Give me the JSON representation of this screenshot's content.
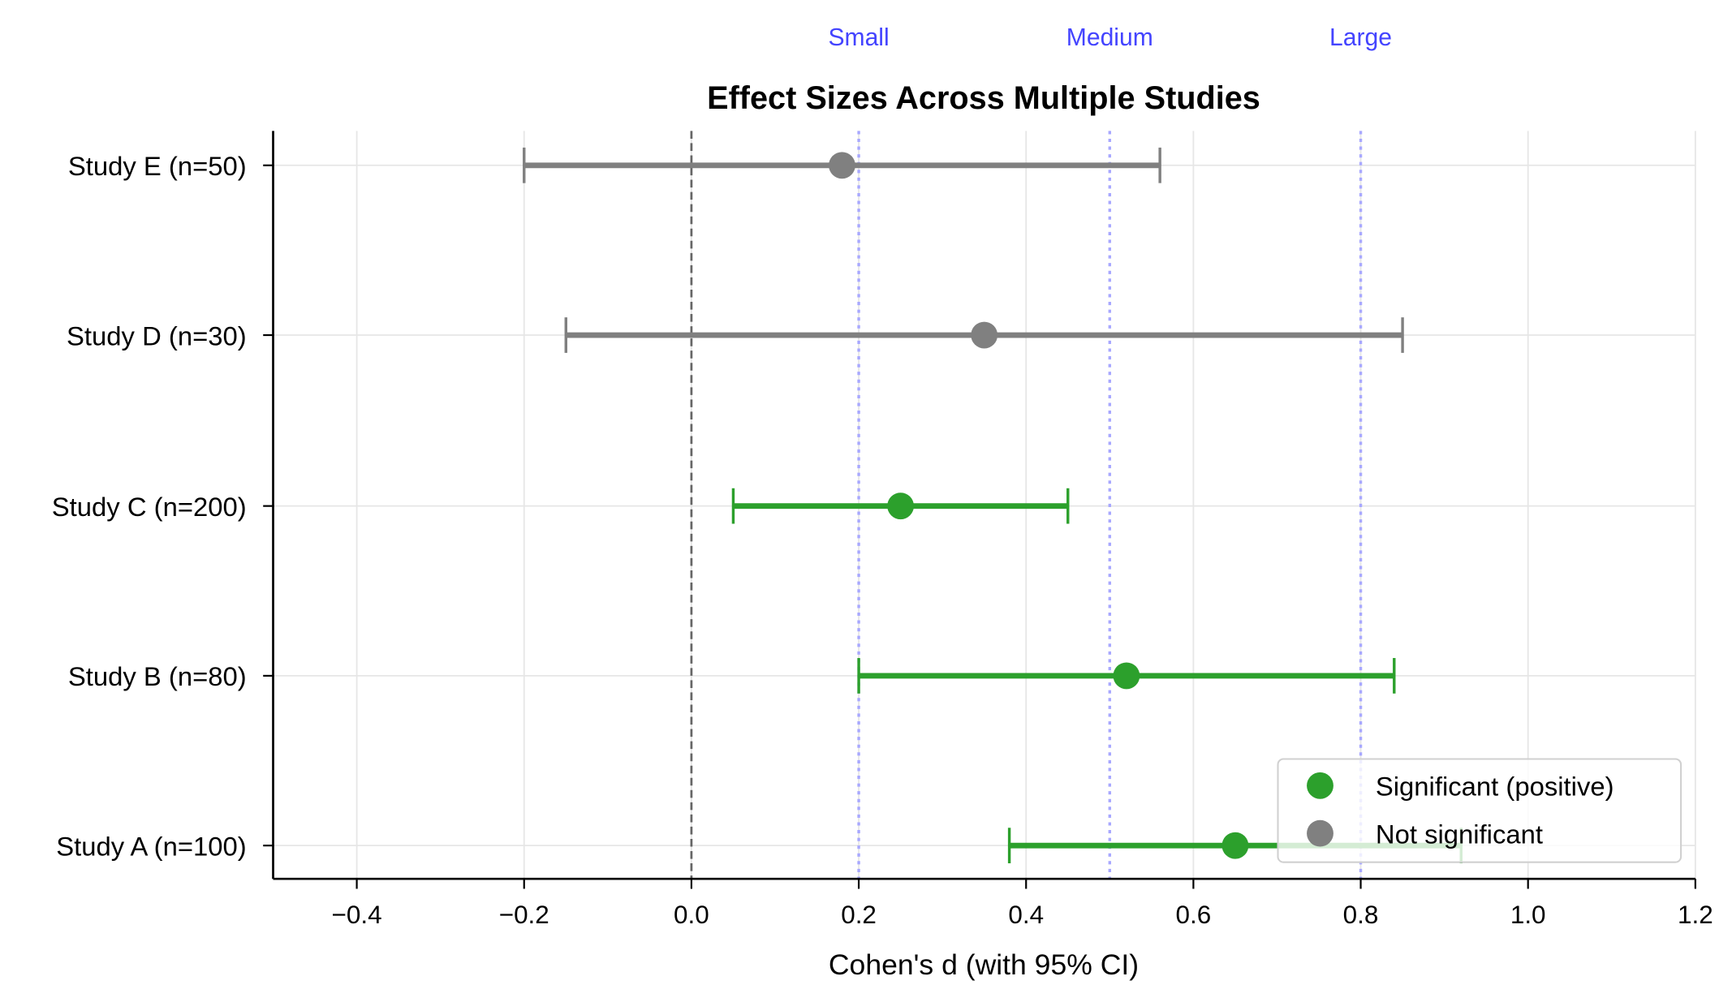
{
  "chart_data": {
    "type": "forest",
    "title": "Effect Sizes Across Multiple Studies",
    "xlabel": "Cohen's d (with 95% CI)",
    "ylabel": "",
    "xlim": [
      -0.5,
      1.2
    ],
    "xticks": [
      -0.4,
      -0.2,
      0.0,
      0.2,
      0.4,
      0.6,
      0.8,
      1.0,
      1.2
    ],
    "xtick_labels": [
      "−0.4",
      "−0.2",
      "0.0",
      "0.2",
      "0.4",
      "0.6",
      "0.8",
      "1.0",
      "1.2"
    ],
    "grid": true,
    "reference_line": {
      "x": 0.0,
      "style": "dashed",
      "color": "#666666"
    },
    "thresholds": [
      {
        "label": "Small",
        "x": 0.2
      },
      {
        "label": "Medium",
        "x": 0.5
      },
      {
        "label": "Large",
        "x": 0.8
      }
    ],
    "threshold_color": "#4444ff",
    "studies": [
      {
        "label": "Study A (n=100)",
        "d": 0.65,
        "ci": [
          0.38,
          0.92
        ],
        "significant": true
      },
      {
        "label": "Study B (n=80)",
        "d": 0.52,
        "ci": [
          0.2,
          0.84
        ],
        "significant": true
      },
      {
        "label": "Study C (n=200)",
        "d": 0.25,
        "ci": [
          0.05,
          0.45
        ],
        "significant": true
      },
      {
        "label": "Study D (n=30)",
        "d": 0.35,
        "ci": [
          -0.15,
          0.85
        ],
        "significant": false
      },
      {
        "label": "Study E (n=50)",
        "d": 0.18,
        "ci": [
          -0.2,
          0.56
        ],
        "significant": false
      }
    ],
    "legend": {
      "placement": "lower-right",
      "entries": [
        {
          "label": "Significant (positive)",
          "color": "#2ca02c"
        },
        {
          "label": "Not significant",
          "color": "#808080"
        }
      ]
    },
    "colors": {
      "significant": "#2ca02c",
      "not_significant": "#808080"
    }
  }
}
